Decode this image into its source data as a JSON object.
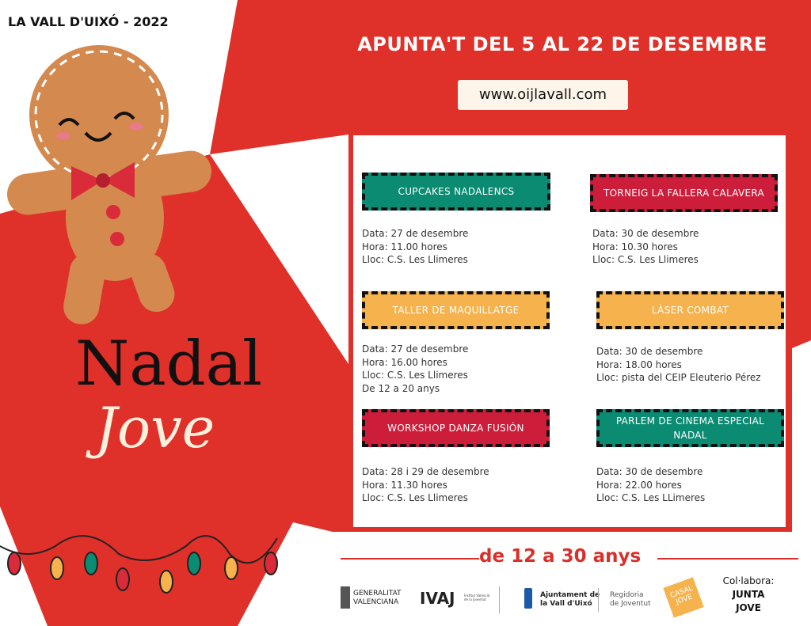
{
  "header": {
    "place_year": "LA VALL D'UIXÓ - 2022",
    "headline": "APUNTA'T DEL 5 AL 22 DE DESEMBRE",
    "url": "www.oijlavall.com"
  },
  "title": {
    "line1": "Nadal",
    "line2": "Jove"
  },
  "events": [
    {
      "title": "CUPCAKES NADALENCS",
      "color": "#0a8b72",
      "lines": [
        "Data: 27 de desembre",
        "Hora: 11.00 hores",
        "Lloc: C.S. Les Llimeres"
      ]
    },
    {
      "title": "TORNEIG LA FALLERA CALAVERA",
      "color": "#cc1d3a",
      "lines": [
        "Data: 30 de desembre",
        "Hora: 10.30 hores",
        "Lloc: C.S. Les Llimeres"
      ]
    },
    {
      "title": "TALLER DE MAQUILLATGE",
      "color": "#f6b24c",
      "lines": [
        "Data: 27 de desembre",
        "Hora: 16.00 hores",
        "Lloc: C.S. Les Llimeres",
        "De 12 a 20 anys"
      ]
    },
    {
      "title": "LÀSER COMBAT",
      "color": "#f6b24c",
      "lines": [
        "Data: 30 de desembre",
        "Hora: 18.00 hores",
        "Lloc: pista del CEIP Eleuterio Pérez"
      ]
    },
    {
      "title": "WORKSHOP DANZA FUSIÓN",
      "color": "#cc1d3a",
      "lines": [
        "Data: 28 i 29 de desembre",
        "Hora: 11.30 hores",
        "Lloc: C.S. Les Llimeres"
      ]
    },
    {
      "title": "PARLEM DE CINEMA ESPECIAL NADAL",
      "color": "#0a8b72",
      "lines": [
        "Data: 30 de desembre",
        "Hora: 22.00 hores",
        "Lloc: C.S. Les LLimeres"
      ]
    }
  ],
  "ages": "de 12 a 30 anys",
  "footer": {
    "generalitat": [
      "GENERALITAT",
      "VALENCIANA"
    ],
    "ivaj": "IVAJ",
    "ivaj_sub": "Institut Valencià de la Joventut",
    "ajuntament": [
      "Ajuntament de",
      "la Vall d'Uixó"
    ],
    "regidoria": [
      "Regidoria",
      "de Joventut"
    ],
    "casal": "CASAL JOVE",
    "collabora": "Col·labora:",
    "junta": [
      "JUNTA",
      "JOVE"
    ]
  },
  "colors": {
    "red": "#e0302a",
    "green": "#0a8b72",
    "crimson": "#cc1d3a",
    "amber": "#f6b24c",
    "cream": "#fdf5ea"
  }
}
